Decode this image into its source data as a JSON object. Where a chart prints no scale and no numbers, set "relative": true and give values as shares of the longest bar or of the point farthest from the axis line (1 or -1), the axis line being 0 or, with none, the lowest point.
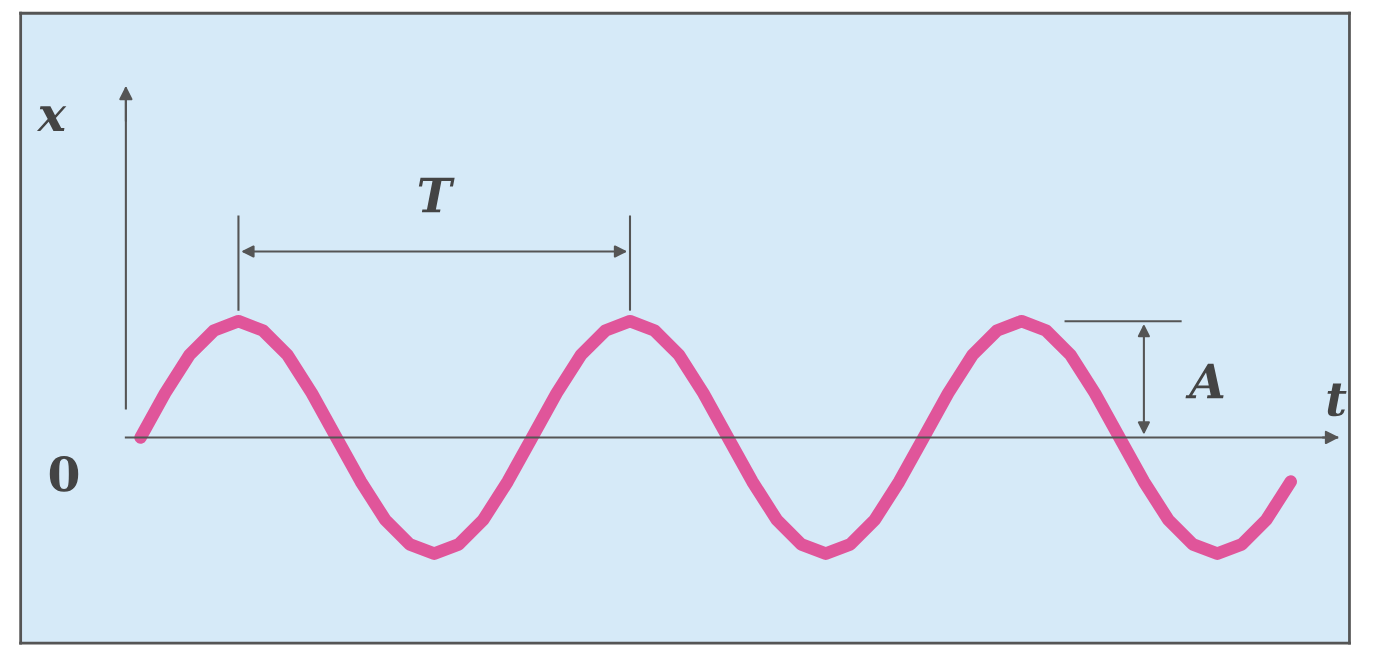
{
  "chart_data": {
    "type": "line",
    "relative": true,
    "categories": [
      null,
      null,
      null,
      null,
      null,
      null,
      null,
      null,
      null,
      null,
      null,
      null,
      null,
      null,
      null,
      null,
      null,
      null,
      null,
      null,
      null,
      null,
      null,
      null,
      null,
      null,
      null,
      null,
      null,
      null,
      null,
      null,
      null,
      null,
      null,
      null,
      null,
      null,
      null,
      null,
      null,
      null,
      null,
      null,
      null,
      null,
      null,
      null
    ],
    "series": [
      {
        "color": "#e0559a",
        "values": [
          0,
          0.38,
          0.71,
          0.92,
          1,
          0.92,
          0.71,
          0.38,
          0,
          -0.38,
          -0.71,
          -0.92,
          -1,
          -0.92,
          -0.71,
          -0.38,
          0,
          0.38,
          0.71,
          0.92,
          1,
          0.92,
          0.71,
          0.38,
          0,
          -0.38,
          -0.71,
          -0.92,
          -1,
          -0.92,
          -0.71,
          -0.38,
          0,
          0.38,
          0.71,
          0.92,
          1,
          0.92,
          0.71,
          0.38,
          0,
          -0.38,
          -0.71,
          -0.92,
          -1,
          -0.92,
          -0.71,
          -0.38
        ]
      }
    ],
    "annotations": [
      "x",
      "t",
      "0",
      "T",
      "A"
    ]
  }
}
